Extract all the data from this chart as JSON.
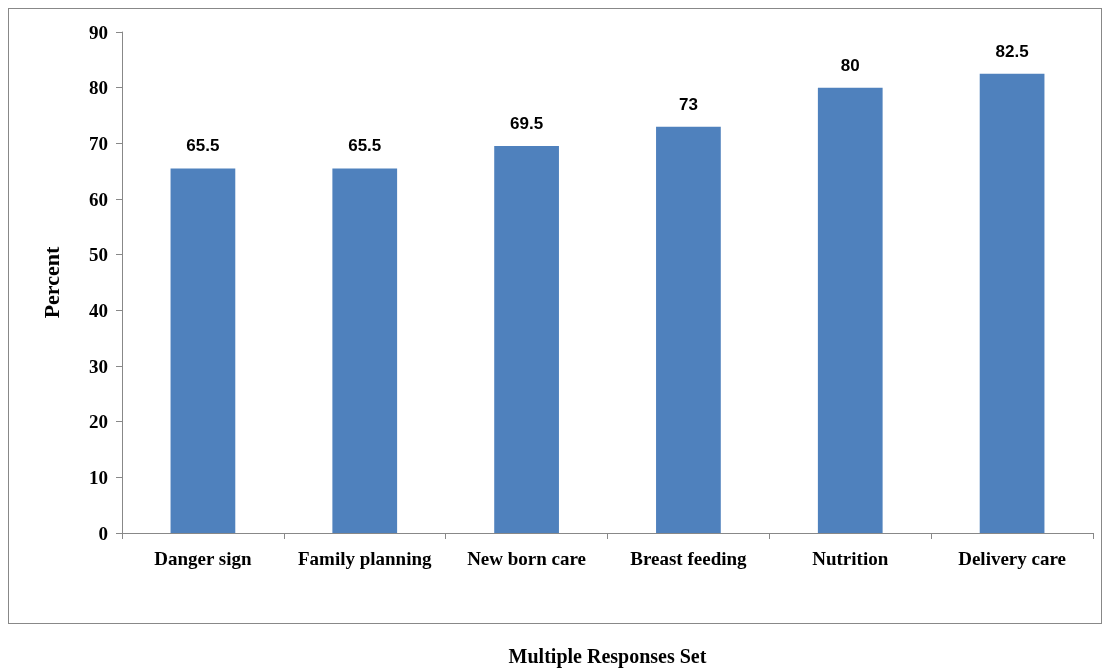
{
  "chart_data": {
    "type": "bar",
    "xlabel": "Multiple Responses Set",
    "ylabel": "Percent",
    "categories": [
      "Danger sign",
      "Family planning",
      "New born care",
      "Breast feeding",
      "Nutrition",
      "Delivery care"
    ],
    "values": [
      65.5,
      65.5,
      69.5,
      73,
      80,
      82.5
    ],
    "color": "#4f81bd",
    "data_labels": true,
    "ylim": [
      0,
      90
    ],
    "yticks": [
      0,
      10,
      20,
      30,
      40,
      50,
      60,
      70,
      80,
      90
    ],
    "grid": false
  }
}
